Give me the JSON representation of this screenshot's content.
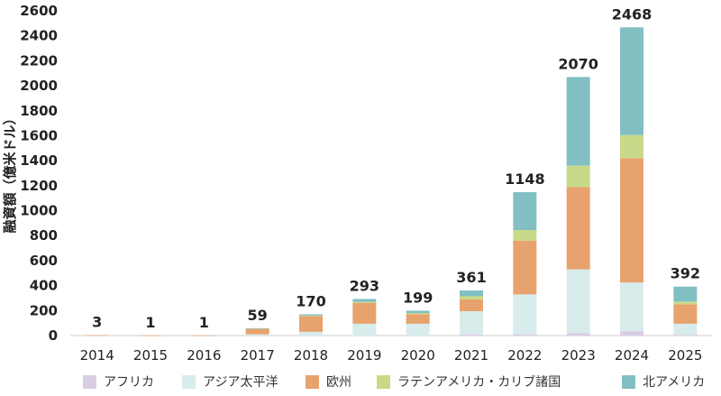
{
  "chart_data": {
    "type": "bar",
    "stacked": true,
    "title": "",
    "xlabel": "",
    "ylabel": "融資額（億米ドル）",
    "ylim": [
      0,
      2600
    ],
    "yticks": [
      0,
      200,
      400,
      600,
      800,
      1000,
      1200,
      1400,
      1600,
      1800,
      2000,
      2200,
      2400,
      2600
    ],
    "grid": false,
    "categories": [
      "2014",
      "2015",
      "2016",
      "2017",
      "2018",
      "2019",
      "2020",
      "2021",
      "2022",
      "2023",
      "2024",
      "2025"
    ],
    "series": [
      {
        "name": "アフリカ",
        "color": "#d9cde6",
        "values": [
          0,
          0,
          0,
          0,
          0,
          0,
          0,
          10,
          10,
          20,
          35,
          5
        ]
      },
      {
        "name": "アジア太平洋",
        "color": "#d8eceb",
        "values": [
          0,
          0,
          0,
          10,
          30,
          95,
          95,
          185,
          320,
          510,
          390,
          90
        ]
      },
      {
        "name": "欧州",
        "color": "#e8a26d",
        "values": [
          3,
          1,
          1,
          45,
          125,
          165,
          75,
          95,
          430,
          660,
          995,
          155
        ]
      },
      {
        "name": "ラテンアメリカ・カリブ諸国",
        "color": "#c8d98a",
        "values": [
          0,
          0,
          0,
          2,
          5,
          10,
          10,
          25,
          85,
          170,
          185,
          22
        ]
      },
      {
        "name": "北アメリカ",
        "color": "#82bfc3",
        "values": [
          0,
          0,
          0,
          2,
          10,
          23,
          19,
          46,
          303,
          710,
          863,
          120
        ]
      }
    ],
    "totals": [
      "3",
      "1",
      "1",
      "59",
      "170",
      "293",
      "199",
      "361",
      "1148",
      "2070",
      "2468",
      "392"
    ],
    "legend_position": "bottom"
  }
}
